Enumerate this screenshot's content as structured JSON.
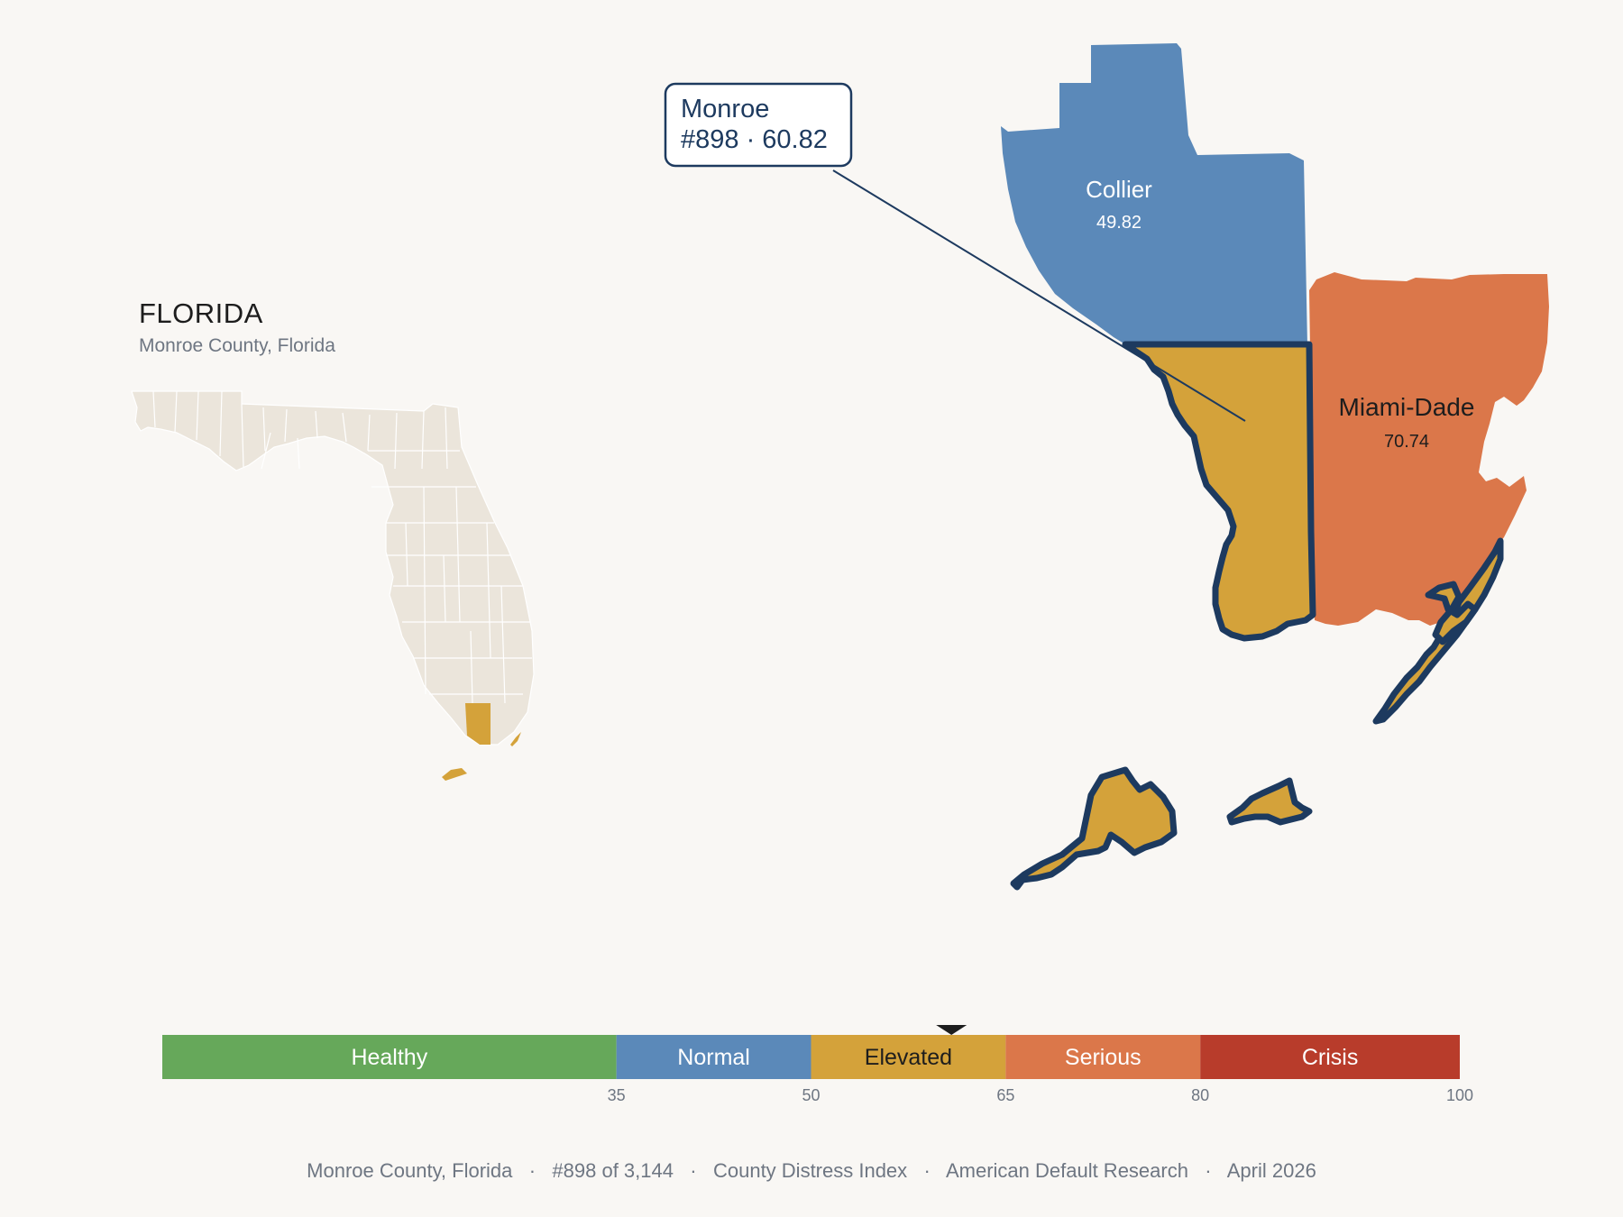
{
  "state": {
    "name": "FLORIDA",
    "subtitle": "Monroe County, Florida"
  },
  "callout": {
    "name": "Monroe",
    "detail": "#898 · 60.82"
  },
  "counties": [
    {
      "name": "Collier",
      "value": "49.82",
      "category": "Normal",
      "color": "#5b89b9"
    },
    {
      "name": "Miami-Dade",
      "value": "70.74",
      "category": "Serious",
      "color": "#db774a"
    },
    {
      "name": "Monroe",
      "value": "60.82",
      "category": "Elevated",
      "color": "#d4a23a",
      "highlighted": true,
      "outline_color": "#1d3a5f"
    }
  ],
  "scale": {
    "bands": [
      {
        "label": "Healthy",
        "color": "#66a85a",
        "from": 0,
        "to": 35
      },
      {
        "label": "Normal",
        "color": "#5b89b9",
        "from": 35,
        "to": 50
      },
      {
        "label": "Elevated",
        "color": "#d4a23a",
        "from": 50,
        "to": 65
      },
      {
        "label": "Serious",
        "color": "#db774a",
        "from": 65,
        "to": 80
      },
      {
        "label": "Crisis",
        "color": "#b83c2b",
        "from": 80,
        "to": 100
      }
    ],
    "ticks": [
      "35",
      "50",
      "65",
      "80",
      "100"
    ],
    "marker_value": 60.82
  },
  "footer": {
    "items": [
      "Monroe County, Florida",
      "#898 of 3,144",
      "County Distress Index",
      "American Default Research",
      "April 2026"
    ]
  },
  "colors": {
    "background": "#f9f7f4",
    "locator_fill": "#ebe5db",
    "locator_highlight": "#d4a23a",
    "outline": "#1d3a5f"
  }
}
